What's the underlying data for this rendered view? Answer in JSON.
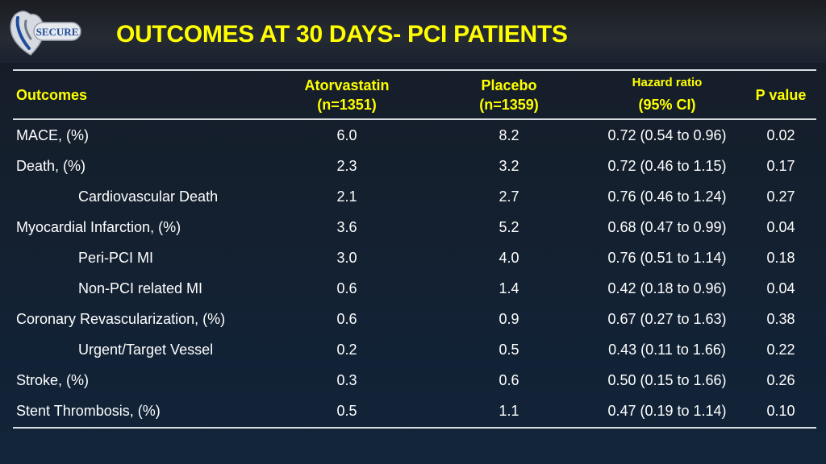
{
  "title": "OUTCOMES AT 30 DAYS- PCI PATIENTS",
  "logo": {
    "text": "SECURE",
    "colors": {
      "blue": "#1f4e9a",
      "silver": "#c9ced6"
    }
  },
  "colors": {
    "title": "#ffff00",
    "header": "#ffff00",
    "text": "#ffffff",
    "rule": "#d8dce2"
  },
  "table": {
    "headers": {
      "outcomes": "Outcomes",
      "atorvastatin": {
        "line1": "Atorvastatin",
        "line2": "(n=1351)"
      },
      "placebo": {
        "line1": "Placebo",
        "line2": "(n=1359)"
      },
      "hazard": {
        "line1": "Hazard ratio",
        "line2": "(95% CI)"
      },
      "pvalue": "P value"
    },
    "rows": [
      {
        "outcome": "MACE, (%)",
        "atorvastatin": "6.0",
        "placebo": "8.2",
        "hazard": "0.72 (0.54 to 0.96)",
        "p": "0.02"
      },
      {
        "outcome": "Death, (%)",
        "atorvastatin": "2.3",
        "placebo": "3.2",
        "hazard": "0.72 (0.46 to 1.15)",
        "p": "0.17"
      },
      {
        "outcome": "Cardiovascular Death",
        "atorvastatin": "2.1",
        "placebo": "2.7",
        "hazard": "0.76 (0.46 to 1.24)",
        "p": "0.27"
      },
      {
        "outcome": "Myocardial Infarction, (%)",
        "atorvastatin": "3.6",
        "placebo": "5.2",
        "hazard": "0.68 (0.47 to 0.99)",
        "p": "0.04"
      },
      {
        "outcome": "Peri-PCI MI",
        "atorvastatin": "3.0",
        "placebo": "4.0",
        "hazard": "0.76 (0.51 to 1.14)",
        "p": "0.18"
      },
      {
        "outcome": "Non-PCI related MI",
        "atorvastatin": "0.6",
        "placebo": "1.4",
        "hazard": "0.42 (0.18 to 0.96)",
        "p": "0.04"
      },
      {
        "outcome": "Coronary Revascularization, (%)",
        "atorvastatin": "0.6",
        "placebo": "0.9",
        "hazard": "0.67 (0.27 to 1.63)",
        "p": "0.38"
      },
      {
        "outcome": "Urgent/Target Vessel",
        "atorvastatin": "0.2",
        "placebo": "0.5",
        "hazard": "0.43 (0.11 to 1.66)",
        "p": "0.22"
      },
      {
        "outcome": "Stroke, (%)",
        "atorvastatin": "0.3",
        "placebo": "0.6",
        "hazard": "0.50 (0.15 to 1.66)",
        "p": "0.26"
      },
      {
        "outcome": "Stent Thrombosis, (%)",
        "atorvastatin": "0.5",
        "placebo": "1.1",
        "hazard": "0.47 (0.19 to 1.14)",
        "p": "0.10"
      }
    ]
  }
}
